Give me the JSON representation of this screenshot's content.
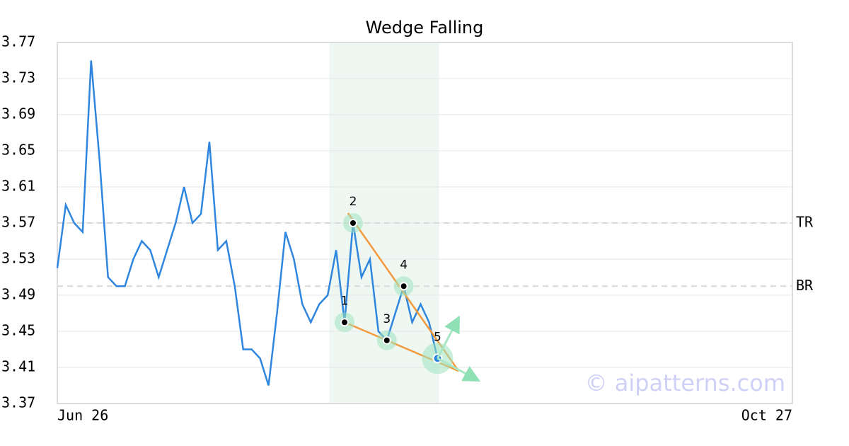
{
  "chart_data": {
    "type": "line",
    "title": "Wedge Falling",
    "categories": [
      "Jun 26",
      null,
      null,
      null,
      null,
      null,
      null,
      null,
      null,
      null,
      null,
      null,
      null,
      null,
      null,
      null,
      null,
      null,
      null,
      null,
      null,
      null,
      null,
      null,
      null,
      null,
      null,
      null,
      null,
      null,
      null,
      null,
      null,
      null,
      null,
      null,
      null,
      null,
      null,
      null,
      null,
      null,
      null,
      null,
      null,
      null,
      null,
      null,
      null,
      null,
      null,
      null,
      null,
      null,
      null,
      null,
      null,
      null,
      null,
      null,
      null,
      null,
      null,
      null,
      null,
      null,
      null,
      null,
      null,
      null,
      null,
      null,
      null,
      null,
      null,
      null,
      null,
      null,
      null,
      null,
      null,
      null,
      null,
      null,
      null,
      null,
      null,
      "Oct 27"
    ],
    "values": [
      3.52,
      3.59,
      3.57,
      3.56,
      3.75,
      3.64,
      3.51,
      3.5,
      3.5,
      3.53,
      3.55,
      3.54,
      3.51,
      3.54,
      3.57,
      3.61,
      3.57,
      3.58,
      3.66,
      3.54,
      3.55,
      3.5,
      3.43,
      3.43,
      3.42,
      3.39,
      3.47,
      3.56,
      3.53,
      3.48,
      3.46,
      3.48,
      3.49,
      3.54,
      3.46,
      3.57,
      3.51,
      3.53,
      3.45,
      3.44,
      3.47,
      3.5,
      3.46,
      3.48,
      3.46,
      3.42,
      null,
      null,
      null,
      null,
      null,
      null,
      null,
      null,
      null,
      null,
      null,
      null,
      null,
      null,
      null,
      null,
      null,
      null,
      null,
      null,
      null,
      null,
      null,
      null,
      null,
      null,
      null,
      null,
      null,
      null,
      null,
      null,
      null,
      null,
      null,
      null,
      null,
      null,
      null,
      null,
      null,
      null
    ],
    "color": "#2f86de",
    "ylim": [
      3.37,
      3.77
    ],
    "yticks": [
      3.37,
      3.41,
      3.45,
      3.49,
      3.53,
      3.57,
      3.61,
      3.65,
      3.69,
      3.73,
      3.77
    ],
    "grid": true,
    "levels": [
      {
        "label": "TR",
        "value": 3.57
      },
      {
        "label": "BR",
        "value": 3.5
      }
    ],
    "highlight_range": [
      32.2,
      45.2
    ],
    "pattern_points": [
      {
        "label": "1",
        "index": 34,
        "value": 3.46
      },
      {
        "label": "2",
        "index": 35,
        "value": 3.57
      },
      {
        "label": "3",
        "index": 39,
        "value": 3.44
      },
      {
        "label": "4",
        "index": 41,
        "value": 3.5
      },
      {
        "label": "5",
        "index": 45,
        "value": 3.42
      }
    ],
    "trendline_color": "#f39a3c",
    "trendlines": [
      {
        "from": [
          34.4,
          3.581
        ],
        "to": [
          47.5,
          3.406
        ]
      },
      {
        "from": [
          34,
          3.46
        ],
        "to": [
          47.5,
          3.406
        ]
      }
    ],
    "watermark": "© aipatterns.com"
  }
}
